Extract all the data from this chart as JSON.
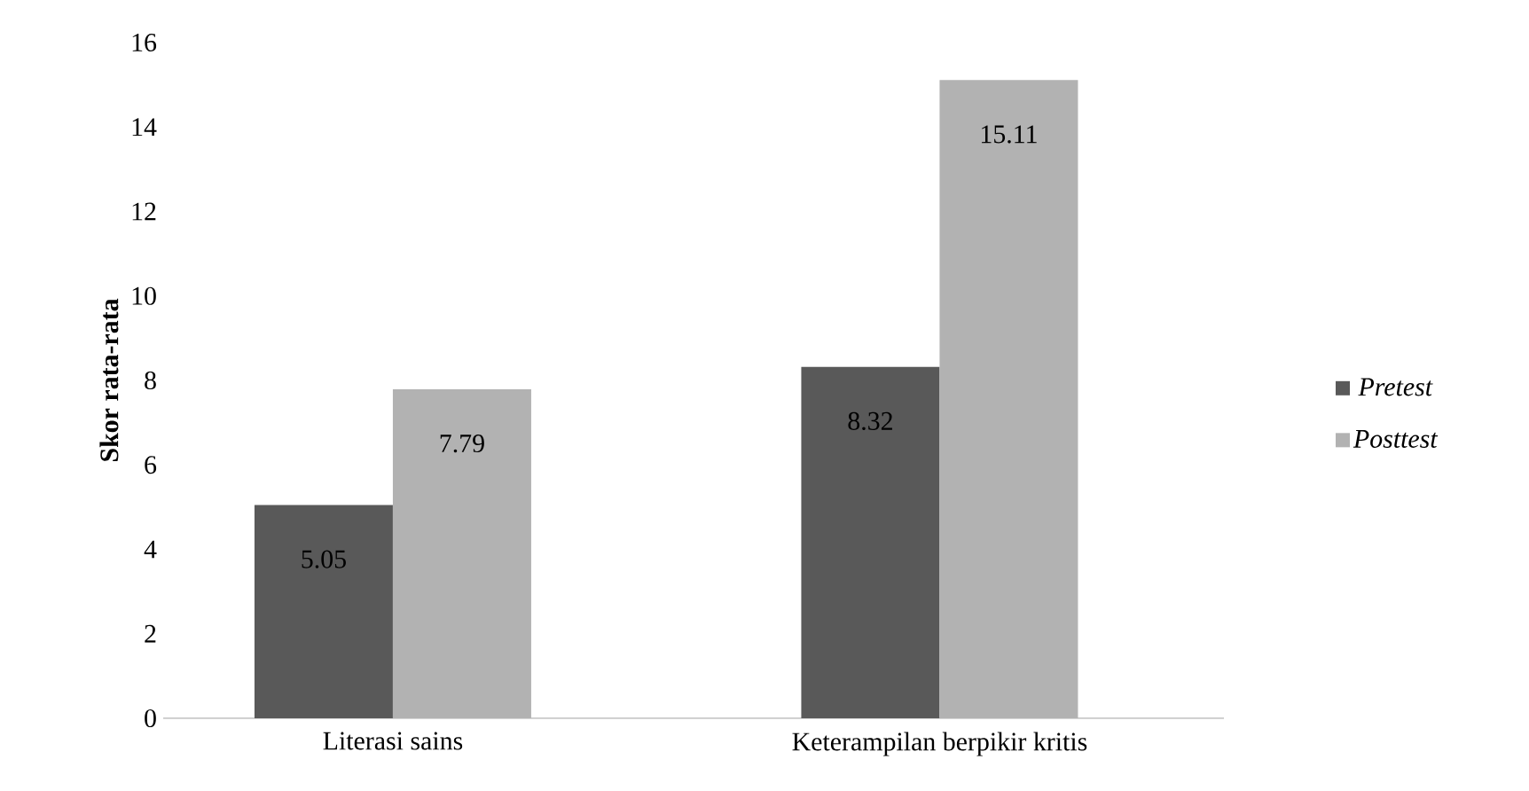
{
  "chart_data": {
    "type": "bar",
    "ylabel": "Skor rata-rata",
    "categories": [
      "Literasi sains",
      "Keterampilan berpikir kritis"
    ],
    "series": [
      {
        "name": "Pretest",
        "color": "#595959",
        "values": [
          5.05,
          8.32
        ]
      },
      {
        "name": "Posttest",
        "color": "#b2b2b2",
        "values": [
          7.79,
          15.11
        ]
      }
    ],
    "ylim": [
      0,
      16
    ],
    "yticks": [
      0,
      2,
      4,
      6,
      8,
      10,
      12,
      14,
      16
    ],
    "grid": false,
    "legend": "right",
    "data_labels": true
  }
}
